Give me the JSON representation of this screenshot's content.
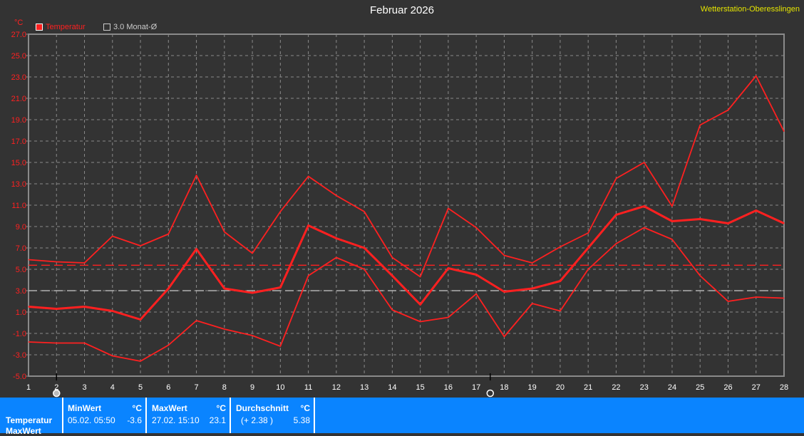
{
  "header": {
    "title": "Februar 2026",
    "station": "Wetterstation-Oberesslingen",
    "unit": "°C"
  },
  "legend": [
    {
      "label": "Temperatur",
      "color": "#ff2020"
    },
    {
      "label": "3.0 Monat-Ø",
      "color": "#cccccc"
    }
  ],
  "moon_phases": [
    {
      "day": 2,
      "phase": "full-moon-icon"
    },
    {
      "day": 17.5,
      "phase": "new-moon-icon"
    }
  ],
  "chart_data": {
    "type": "line",
    "title": "Februar 2026",
    "ylabel": "°C",
    "x": [
      1,
      2,
      3,
      4,
      5,
      6,
      7,
      8,
      9,
      10,
      11,
      12,
      13,
      14,
      15,
      16,
      17,
      18,
      19,
      20,
      21,
      22,
      23,
      24,
      25,
      26,
      27,
      28
    ],
    "xlim": [
      1,
      28
    ],
    "ylim": [
      -5,
      27
    ],
    "yticks": [
      "27.0",
      "25.0",
      "23.0",
      "21.0",
      "19.0",
      "17.0",
      "15.0",
      "13.0",
      "11.0",
      "9.0",
      "7.0",
      "5.0",
      "3.0",
      "1.0",
      "-1.0",
      "-3.0",
      "-5.0"
    ],
    "grid": true,
    "legend_position": "top-left",
    "series": [
      {
        "role": "max",
        "color": "#ff2020",
        "values": [
          5.9,
          5.7,
          5.6,
          8.1,
          7.2,
          8.3,
          13.8,
          8.5,
          6.5,
          10.4,
          13.7,
          11.9,
          10.4,
          6.1,
          4.3,
          10.7,
          8.9,
          6.3,
          5.6,
          7.1,
          8.4,
          13.5,
          15.0,
          10.9,
          18.5,
          19.9,
          23.1,
          17.9
        ]
      },
      {
        "role": "avg",
        "color": "#ff2020",
        "values": [
          1.5,
          1.3,
          1.5,
          1.1,
          0.3,
          3.2,
          6.9,
          3.2,
          2.8,
          3.3,
          9.1,
          7.9,
          7.0,
          4.4,
          1.7,
          5.1,
          4.5,
          2.9,
          3.2,
          3.9,
          7.0,
          10.1,
          10.9,
          9.5,
          9.7,
          9.3,
          10.5,
          9.3
        ]
      },
      {
        "role": "min",
        "color": "#ff2020",
        "values": [
          -1.8,
          -1.9,
          -1.9,
          -3.1,
          -3.6,
          -2.1,
          0.2,
          -0.6,
          -1.2,
          -2.2,
          4.4,
          6.1,
          5.0,
          1.2,
          0.1,
          0.5,
          2.7,
          -1.3,
          1.8,
          1.1,
          5.0,
          7.4,
          8.9,
          7.8,
          4.4,
          2.0,
          2.4,
          2.3
        ]
      }
    ],
    "reference_lines": [
      {
        "role": "month-average",
        "value": 5.38,
        "color": "#ff2020"
      },
      {
        "role": "long-term-average",
        "value": 3.0,
        "color": "#cccccc"
      }
    ]
  },
  "footer": {
    "row_label": "Temperatur",
    "row_label2": "MaxWert",
    "min": {
      "title": "MinWert",
      "unit": "°C",
      "date": "05.02.  05:50",
      "value": "-3.6"
    },
    "max": {
      "title": "MaxWert",
      "unit": "°C",
      "date": "27.02.  15:10",
      "value": "23.1"
    },
    "avg": {
      "title": "Durchschnitt",
      "unit": "°C",
      "diff": "(+ 2.38 )",
      "value": "5.38"
    }
  }
}
